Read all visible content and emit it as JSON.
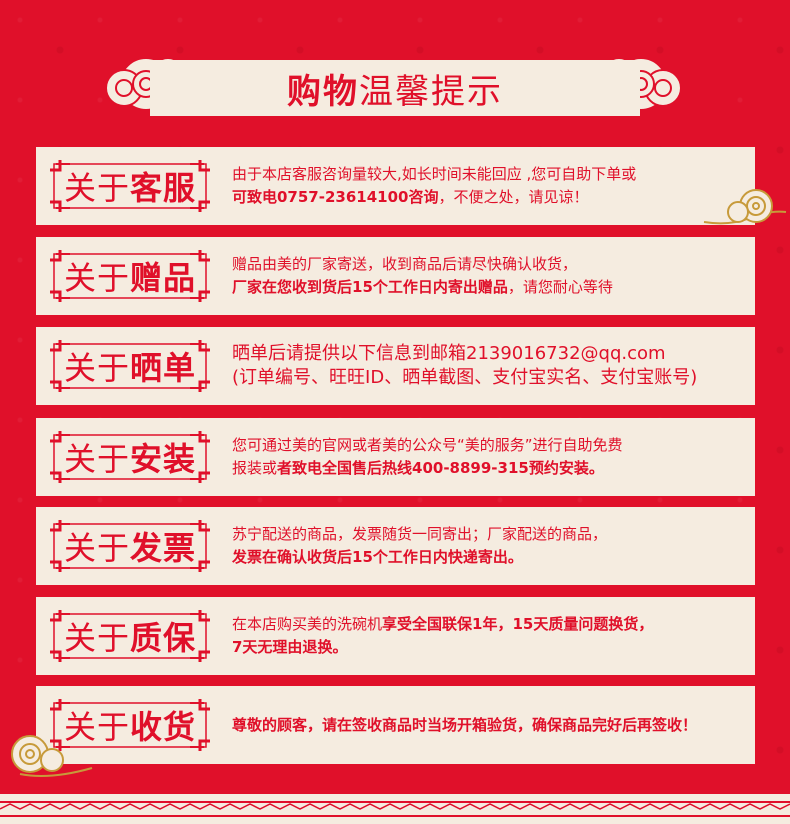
{
  "header": {
    "title_bold": "购物",
    "title_normal": "温馨提示"
  },
  "rows": [
    {
      "badge_prefix": "关于",
      "badge_key": "客服",
      "line1": "由于本店客服咨询量较大,如长时间未能回应 ,您可自助下单或",
      "line2_bold": "可致电0757-23614100咨询",
      "line2_normal": "，不便之处，请见谅！"
    },
    {
      "badge_prefix": "关于",
      "badge_key": "赠品",
      "line1": "赠品由美的厂家寄送，收到商品后请尽快确认收货，",
      "line2_bold": "厂家在您收到货后15个工作日内寄出赠品",
      "line2_normal": "，请您耐心等待"
    },
    {
      "badge_prefix": "关于",
      "badge_key": "晒单",
      "line1": "晒单后请提供以下信息到邮箱2139016732@qq.com",
      "line2": "(订单编号、旺旺ID、晒单截图、支付宝实名、支付宝账号)"
    },
    {
      "badge_prefix": "关于",
      "badge_key": "安装",
      "line1": "您可通过美的官网或者美的公众号“美的服务”进行自助免费",
      "line2_normal": "报装或",
      "line2_bold": "者致电全国售后热线400-8899-315预约安装。"
    },
    {
      "badge_prefix": "关于",
      "badge_key": "发票",
      "line1": "苏宁配送的商品，发票随货一同寄出；厂家配送的商品，",
      "line2_bold": "发票在确认收货后15个工作日内快递寄出。"
    },
    {
      "badge_prefix": "关于",
      "badge_key": "质保",
      "line1_normal": "在本店购买美的洗碗机",
      "line1_bold": "享受全国联保1年，15天质量问题换货，",
      "line2_bold": "7天无理由退换。"
    },
    {
      "badge_prefix": "关于",
      "badge_key": "收货",
      "line1_bold": "尊敬的顾客，请在签收商品时当场开箱验货，确保商品完好后再签收！"
    }
  ],
  "colors": {
    "background": "#e0102a",
    "panel": "#f5ece0",
    "accent": "#e0102a"
  }
}
